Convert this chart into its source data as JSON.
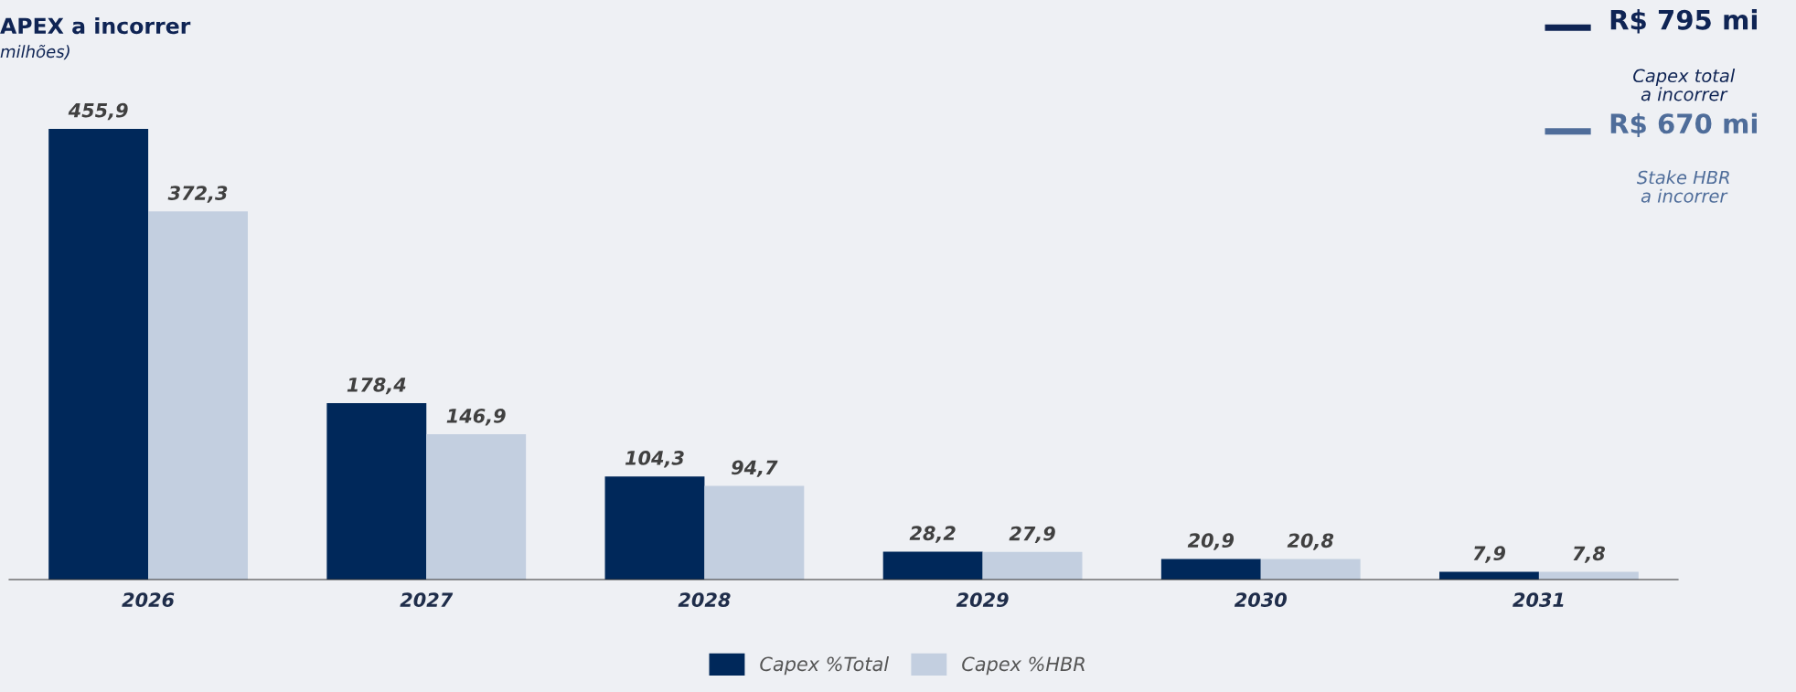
{
  "chart_data": {
    "type": "bar",
    "title": "APEX a incorrer",
    "subtitle": "milhões)",
    "categories": [
      "2026",
      "2027",
      "2028",
      "2029",
      "2030",
      "2031"
    ],
    "series": [
      {
        "name": "Capex %Total",
        "color": "#00285a",
        "values": [
          455.9,
          178.4,
          104.3,
          28.2,
          20.9,
          7.9
        ],
        "value_labels": [
          "455,9",
          "178,4",
          "104,3",
          "28,2",
          "20,9",
          "7,9"
        ]
      },
      {
        "name": "Capex %HBR",
        "color": "#c3cfe0",
        "values": [
          372.3,
          146.9,
          94.7,
          27.9,
          20.8,
          7.8
        ],
        "value_labels": [
          "372,3",
          "146,9",
          "94,7",
          "27,9",
          "20,8",
          "7,8"
        ]
      }
    ],
    "annotations": [
      "R$ 795 mi",
      "Capex total\na incorrer",
      "R$ 670 mi",
      "Stake HBR\na incorrer"
    ],
    "legend": "bottom",
    "grid": false
  }
}
